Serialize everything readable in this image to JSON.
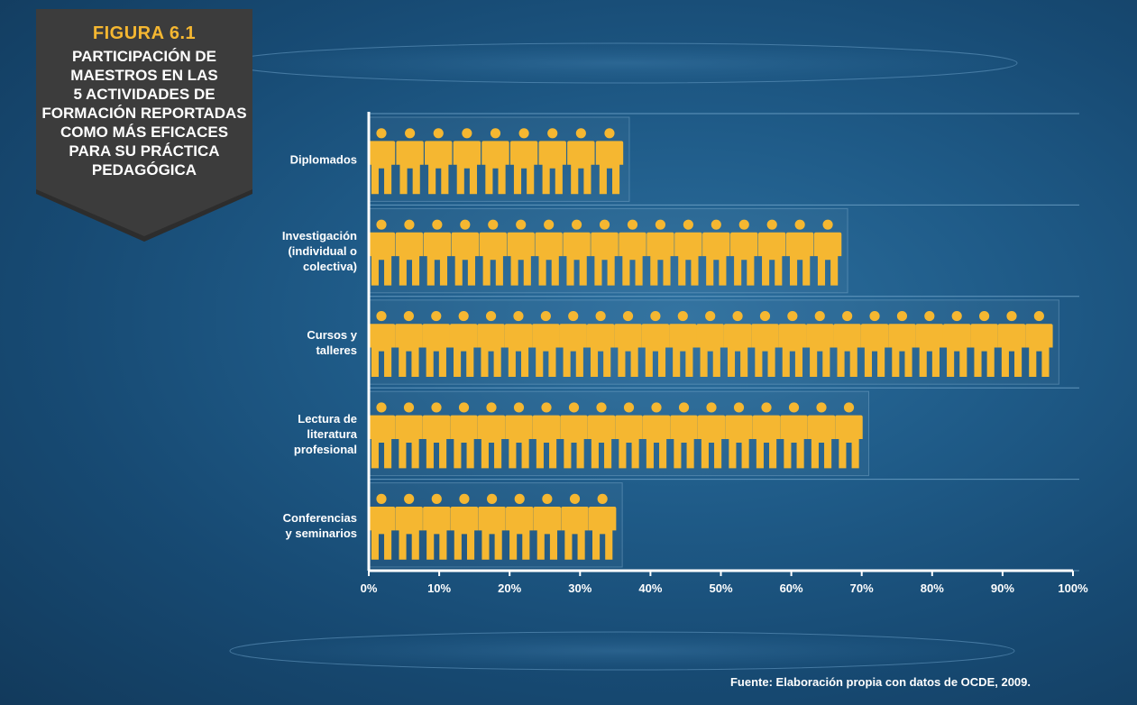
{
  "header": {
    "figure_label": "FIGURA 6.1",
    "title": "PARTICIPACIÓN DE\nMAESTROS EN LAS\n5 ACTIVIDADES DE\nFORMACIÓN REPORTADAS\nCOMO MÁS EFICACES\nPARA SU PRÁCTICA\nPEDAGÓGICA"
  },
  "source": "Fuente: Elaboración propia con datos de OCDE, 2009.",
  "colors": {
    "figure_label": "#f5b731",
    "person": "#f5b731",
    "background": "#1f5b88",
    "badge": "#3a3a3a"
  },
  "chart_data": {
    "type": "bar",
    "mark": "pictograph",
    "orientation": "horizontal",
    "categories": [
      [
        "Diplomados"
      ],
      [
        "Investigación",
        "(individual o",
        "colectiva)"
      ],
      [
        "Cursos y",
        "talleres"
      ],
      [
        "Lectura de",
        "literatura",
        "profesional"
      ],
      [
        "Conferencias",
        "y seminarios"
      ]
    ],
    "values": [
      37,
      68,
      98,
      71,
      36
    ],
    "icon_counts": [
      9,
      17,
      25,
      18,
      9
    ],
    "xlim": [
      0,
      100
    ],
    "x_ticks": [
      "0%",
      "10%",
      "20%",
      "30%",
      "40%",
      "50%",
      "60%",
      "70%",
      "80%",
      "90%",
      "100%"
    ],
    "grid": false,
    "legend": "none"
  }
}
